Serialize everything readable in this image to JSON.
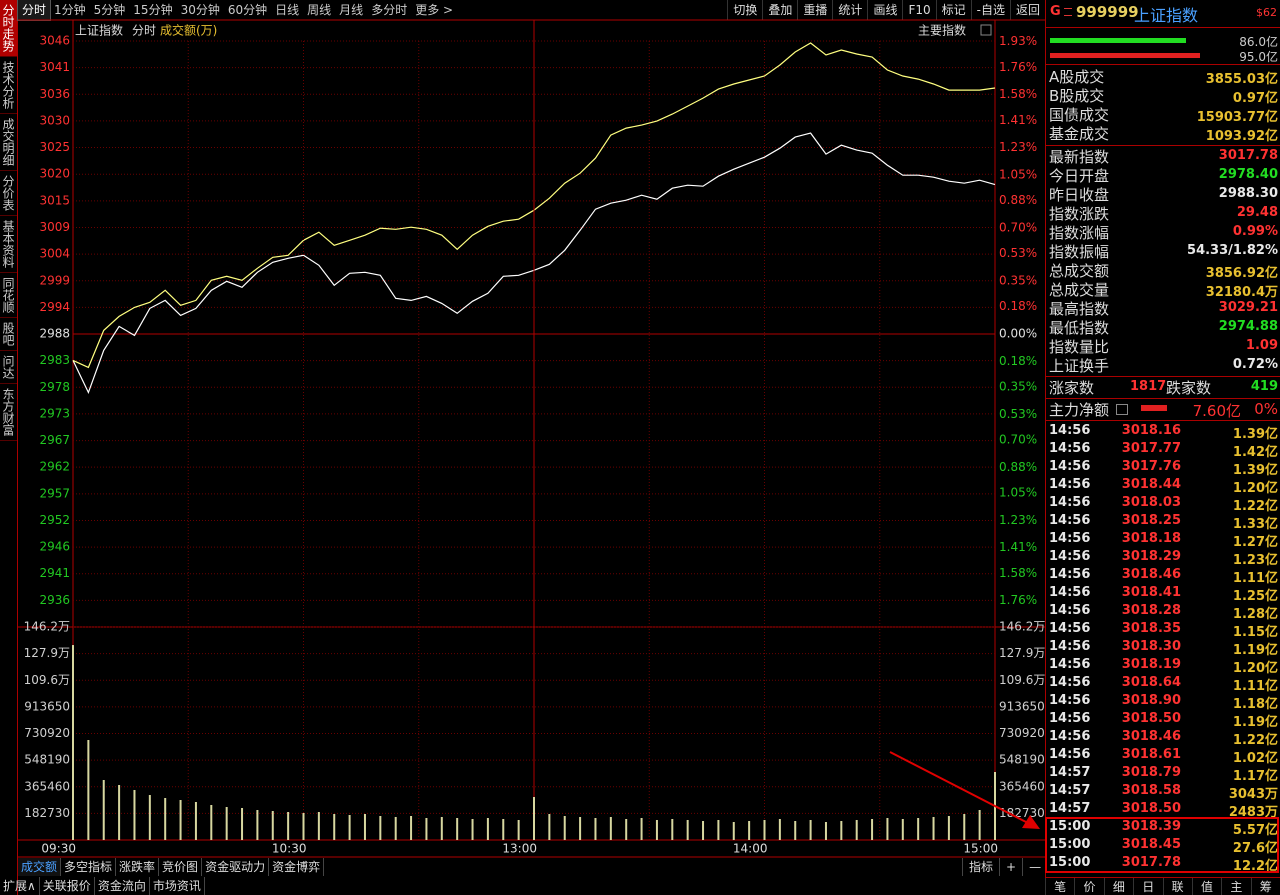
{
  "toolbar": {
    "periods": [
      "分时",
      "1分钟",
      "5分钟",
      "15分钟",
      "30分钟",
      "60分钟",
      "日线",
      "周线",
      "月线",
      "多分时",
      "更多 >"
    ],
    "actions": [
      "切换",
      "叠加",
      "重播",
      "统计",
      "画线",
      "F10",
      "标记",
      "-自选",
      "返回"
    ]
  },
  "side_tabs": [
    "分时走势",
    "技术分析",
    "成交明细",
    "分价表",
    "基本资料",
    "同花顺",
    "股吧",
    "问达",
    "东方财富"
  ],
  "chart_data": [
    {
      "type": "line",
      "title": "上证指数",
      "mode": "分时",
      "volume_caption": "成交额(万)",
      "index_button": "主要指数",
      "up_color": "#ff3232",
      "down_color": "#22c822",
      "flat_color": "#e0e0e0",
      "grid": true,
      "x": [
        0,
        4,
        8,
        12,
        16,
        20,
        24,
        28,
        32,
        36,
        40,
        44,
        48,
        52,
        56,
        60,
        64,
        68,
        72,
        76,
        80,
        84,
        88,
        92,
        96,
        100,
        104,
        108,
        112,
        116,
        120,
        124,
        128,
        132,
        136,
        140,
        144,
        148,
        152,
        156,
        160,
        164,
        168,
        172,
        176,
        180,
        184,
        188,
        192,
        196,
        200,
        204,
        208,
        212,
        216,
        220,
        224,
        228,
        232,
        236,
        240
      ],
      "xlim": [
        0,
        240
      ],
      "ylim": [
        2930.5,
        3046.11
      ],
      "yticks": [
        {
          "value": 3046.11,
          "label": "3046"
        },
        {
          "value": 3040.85,
          "label": "3041"
        },
        {
          "value": 3035.6,
          "label": "3036"
        },
        {
          "value": 3030.34,
          "label": "3030"
        },
        {
          "value": 3025.09,
          "label": "3025"
        },
        {
          "value": 3019.83,
          "label": "3020"
        },
        {
          "value": 3014.58,
          "label": "3015"
        },
        {
          "value": 3009.32,
          "label": "3009"
        },
        {
          "value": 3004.07,
          "label": "3004"
        },
        {
          "value": 2998.81,
          "label": "2999"
        },
        {
          "value": 2993.56,
          "label": "2994"
        },
        {
          "value": 2988.3,
          "label": "2988"
        },
        {
          "value": 2983.05,
          "label": "2983"
        },
        {
          "value": 2977.79,
          "label": "2978"
        },
        {
          "value": 2972.54,
          "label": "2973"
        },
        {
          "value": 2967.28,
          "label": "2967"
        },
        {
          "value": 2962.03,
          "label": "2962"
        },
        {
          "value": 2956.77,
          "label": "2957"
        },
        {
          "value": 2951.52,
          "label": "2952"
        },
        {
          "value": 2946.26,
          "label": "2946"
        },
        {
          "value": 2941.01,
          "label": "2941"
        },
        {
          "value": 2935.75,
          "label": "2936"
        }
      ],
      "y2lim": [
        -1.934,
        1.934
      ],
      "y2ticks": [
        {
          "value": 1.93,
          "label": "1.93%"
        },
        {
          "value": 1.76,
          "label": "1.76%"
        },
        {
          "value": 1.58,
          "label": "1.58%"
        },
        {
          "value": 1.41,
          "label": "1.41%"
        },
        {
          "value": 1.23,
          "label": "1.23%"
        },
        {
          "value": 1.05,
          "label": "1.05%"
        },
        {
          "value": 0.88,
          "label": "0.88%"
        },
        {
          "value": 0.7,
          "label": "0.70%"
        },
        {
          "value": 0.53,
          "label": "0.53%"
        },
        {
          "value": 0.35,
          "label": "0.35%"
        },
        {
          "value": 0.18,
          "label": "0.18%"
        },
        {
          "value": 0,
          "label": "0.00%"
        },
        {
          "value": -0.18,
          "label": "0.18%"
        },
        {
          "value": -0.35,
          "label": "0.35%"
        },
        {
          "value": -0.53,
          "label": "0.53%"
        },
        {
          "value": -0.7,
          "label": "0.70%"
        },
        {
          "value": -0.88,
          "label": "0.88%"
        },
        {
          "value": -1.05,
          "label": "1.05%"
        },
        {
          "value": -1.23,
          "label": "1.23%"
        },
        {
          "value": -1.41,
          "label": "1.41%"
        },
        {
          "value": -1.58,
          "label": "1.58%"
        },
        {
          "value": -1.76,
          "label": "1.76%"
        }
      ],
      "series": [
        {
          "color": "#ffffff",
          "values": [
            2983.09,
            2976.77,
            2985.07,
            2989.81,
            2988.03,
            2993.36,
            2994.94,
            2991.98,
            2993.36,
            2996.92,
            2998.7,
            2997.51,
            3000.48,
            3002.45,
            3003.24,
            3003.83,
            3001.86,
            2997.91,
            3000.28,
            3000.48,
            2999.88,
            2995.34,
            2994.94,
            2995.73,
            2994.35,
            2992.38,
            2994.75,
            2996.33,
            2999.69,
            2999.88,
            3000.87,
            3002.06,
            3004.82,
            3008.77,
            3012.92,
            3014.11,
            3014.7,
            3015.69,
            3014.9,
            3017.07,
            3017.66,
            3017.47,
            3019.44,
            3020.82,
            3022.01,
            3023.19,
            3024.97,
            3027.15,
            3027.94,
            3023.79,
            3025.56,
            3024.58,
            3023.98,
            3021.61,
            3019.64,
            3019.64,
            3019.24,
            3018.45,
            3018.06,
            3018.65,
            3017.78
          ]
        },
        {
          "color": "#ffff80",
          "values": [
            2983.09,
            2981.71,
            2989.02,
            2991.78,
            2993.56,
            2994.55,
            2996.92,
            2993.96,
            2994.94,
            2998.9,
            2999.69,
            2998.9,
            3001.27,
            3003.44,
            3003.83,
            3006.8,
            3008.38,
            3005.81,
            3006.8,
            3007.79,
            3009.17,
            3008.97,
            3009.37,
            3008.97,
            3007.79,
            3005.02,
            3007.79,
            3009.56,
            3010.55,
            3010.95,
            3012.72,
            3015.09,
            3018.06,
            3020.03,
            3023.0,
            3027.54,
            3028.92,
            3029.52,
            3030.31,
            3031.69,
            3033.27,
            3034.85,
            3036.63,
            3037.62,
            3038.41,
            3039.2,
            3041.37,
            3043.94,
            3045.71,
            3043.34,
            3044.33,
            3043.54,
            3042.95,
            3040.38,
            3039.2,
            3038.6,
            3037.62,
            3036.43,
            3036.43,
            3036.43,
            3036.83
          ]
        }
      ]
    },
    {
      "type": "bar",
      "color": "#d8d8a0",
      "label_color": "#d0d0d0",
      "x": [
        0,
        4,
        8,
        12,
        16,
        20,
        24,
        28,
        32,
        36,
        40,
        44,
        48,
        52,
        56,
        60,
        64,
        68,
        72,
        76,
        80,
        84,
        88,
        92,
        96,
        100,
        104,
        108,
        112,
        116,
        120,
        124,
        128,
        132,
        136,
        140,
        144,
        148,
        152,
        156,
        160,
        164,
        168,
        172,
        176,
        180,
        184,
        188,
        192,
        196,
        200,
        204,
        208,
        212,
        216,
        220,
        224,
        228,
        232,
        236,
        240
      ],
      "xlim": [
        0,
        240
      ],
      "xticks": [
        {
          "value": 0,
          "label": "09:30"
        },
        {
          "value": 60,
          "label": "10:30"
        },
        {
          "value": 120,
          "label": "13:00"
        },
        {
          "value": 180,
          "label": "14:00"
        },
        {
          "value": 240,
          "label": "15:00"
        }
      ],
      "ylim": [
        0,
        1461840
      ],
      "yticks": [
        {
          "value": 1461840,
          "label": "146.2万"
        },
        {
          "value": 1279110,
          "label": "127.9万"
        },
        {
          "value": 1096380,
          "label": "109.6万"
        },
        913650,
        730920,
        548190,
        365460,
        182730
      ],
      "values": [
        1338000,
        686300,
        411800,
        377500,
        343200,
        308800,
        288200,
        274500,
        260800,
        240200,
        226500,
        219600,
        205900,
        199000,
        192200,
        185300,
        192200,
        178400,
        171600,
        178400,
        164700,
        157900,
        164700,
        151000,
        157900,
        151000,
        144100,
        151000,
        144100,
        137300,
        295100,
        178400,
        164700,
        157900,
        151000,
        157900,
        144100,
        151000,
        137300,
        144100,
        137300,
        130400,
        137300,
        123500,
        130400,
        137300,
        144100,
        130400,
        137300,
        123500,
        130400,
        137300,
        144100,
        151000,
        144100,
        151000,
        157900,
        164700,
        178400,
        205900,
        466700
      ]
    }
  ],
  "quote_panel": {
    "header": {
      "market": "G",
      "code": "999999",
      "name": "上证指数",
      "badge": "$62"
    },
    "gauges": [
      {
        "value": 86.0,
        "label": "86.0亿",
        "color": "#22dd22"
      },
      {
        "value": 95.0,
        "label": "95.0亿",
        "color": "#e02020"
      }
    ],
    "turnover": [
      {
        "label": "A股成交",
        "value": "3855.03亿",
        "color": "#e8c030"
      },
      {
        "label": "B股成交",
        "value": "0.97亿",
        "color": "#e8c030"
      },
      {
        "label": "国债成交",
        "value": "15903.77亿",
        "color": "#e8c030"
      },
      {
        "label": "基金成交",
        "value": "1093.92亿",
        "color": "#e8c030"
      }
    ],
    "stats": [
      {
        "label": "最新指数",
        "value": "3017.78",
        "color": "#ff3232"
      },
      {
        "label": "今日开盘",
        "value": "2978.40",
        "color": "#22dd22"
      },
      {
        "label": "昨日收盘",
        "value": "2988.30",
        "color": "#e8e8e8"
      },
      {
        "label": "指数涨跌",
        "value": "29.48",
        "color": "#ff3232"
      },
      {
        "label": "指数涨幅",
        "value": "0.99%",
        "color": "#ff3232"
      },
      {
        "label": "指数振幅",
        "value": "54.33/1.82%",
        "color": "#e8e8e8"
      },
      {
        "label": "总成交额",
        "value": "3856.92亿",
        "color": "#e8c030"
      },
      {
        "label": "总成交量",
        "value": "32180.4万",
        "color": "#e8c030"
      },
      {
        "label": "最高指数",
        "value": "3029.21",
        "color": "#ff3232"
      },
      {
        "label": "最低指数",
        "value": "2974.88",
        "color": "#22dd22"
      },
      {
        "label": "指数量比",
        "value": "1.09",
        "color": "#ff3232"
      },
      {
        "label": "上证换手",
        "value": "0.72%",
        "color": "#e8e8e8"
      }
    ],
    "breadth": {
      "up_label": "涨家数",
      "up": "1817",
      "down_label": "跌家数",
      "down": "419"
    },
    "flow": {
      "label": "主力净额",
      "value": "7.60亿",
      "pct": "0%"
    }
  },
  "trades": [
    [
      "14:56",
      "3018.16",
      "1.39亿"
    ],
    [
      "14:56",
      "3017.77",
      "1.42亿"
    ],
    [
      "14:56",
      "3017.76",
      "1.39亿"
    ],
    [
      "14:56",
      "3018.44",
      "1.20亿"
    ],
    [
      "14:56",
      "3018.03",
      "1.22亿"
    ],
    [
      "14:56",
      "3018.25",
      "1.33亿"
    ],
    [
      "14:56",
      "3018.18",
      "1.27亿"
    ],
    [
      "14:56",
      "3018.29",
      "1.23亿"
    ],
    [
      "14:56",
      "3018.46",
      "1.11亿"
    ],
    [
      "14:56",
      "3018.41",
      "1.25亿"
    ],
    [
      "14:56",
      "3018.28",
      "1.28亿"
    ],
    [
      "14:56",
      "3018.35",
      "1.15亿"
    ],
    [
      "14:56",
      "3018.30",
      "1.19亿"
    ],
    [
      "14:56",
      "3018.19",
      "1.20亿"
    ],
    [
      "14:56",
      "3018.64",
      "1.11亿"
    ],
    [
      "14:56",
      "3018.90",
      "1.18亿"
    ],
    [
      "14:56",
      "3018.50",
      "1.19亿"
    ],
    [
      "14:56",
      "3018.46",
      "1.22亿"
    ],
    [
      "14:56",
      "3018.61",
      "1.02亿"
    ],
    [
      "14:57",
      "3018.79",
      "1.17亿"
    ],
    [
      "14:57",
      "3018.58",
      "3043万"
    ],
    [
      "14:57",
      "3018.50",
      "2483万"
    ],
    [
      "15:00",
      "3018.39",
      "5.57亿"
    ],
    [
      "15:00",
      "3018.45",
      "27.6亿"
    ],
    [
      "15:00",
      "3017.78",
      "12.2亿"
    ]
  ],
  "panel_tabs": [
    "笔",
    "价",
    "细",
    "日",
    "联",
    "值",
    "主",
    "筹"
  ],
  "indicator_tabs": [
    "成交额",
    "多空指标",
    "涨跌率",
    "竞价图",
    "资金驱动力",
    "资金博弈"
  ],
  "indicator_controls": [
    "指标",
    "+",
    "—"
  ],
  "bottom_links": [
    "扩展∧",
    "关联报价",
    "资金流向",
    "市场资讯"
  ]
}
